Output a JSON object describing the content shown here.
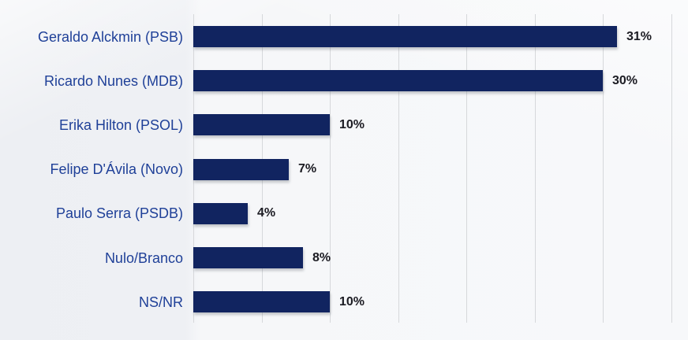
{
  "chart_data": {
    "type": "bar",
    "orientation": "horizontal",
    "title": "",
    "xlabel": "",
    "ylabel": "",
    "categories": [
      "Geraldo Alckmin (PSB)",
      "Ricardo Nunes (MDB)",
      "Erika Hilton (PSOL)",
      "Felipe D'Ávila (Novo)",
      "Paulo Serra (PSDB)",
      "Nulo/Branco",
      "NS/NR"
    ],
    "values": [
      31,
      30,
      10,
      7,
      4,
      8,
      10
    ],
    "value_labels": [
      "31%",
      "30%",
      "10%",
      "7%",
      "4%",
      "8%",
      "10%"
    ],
    "xlim": [
      0,
      35
    ],
    "grid": true,
    "grid_step": 5,
    "legend": false,
    "axis_tick_labels_visible": false,
    "colors": {
      "bar": "#112460",
      "category_label": "#1f4098",
      "value_label": "#1b1b22",
      "gridline": "#d6d8db",
      "background": "#f1f2f5"
    }
  }
}
